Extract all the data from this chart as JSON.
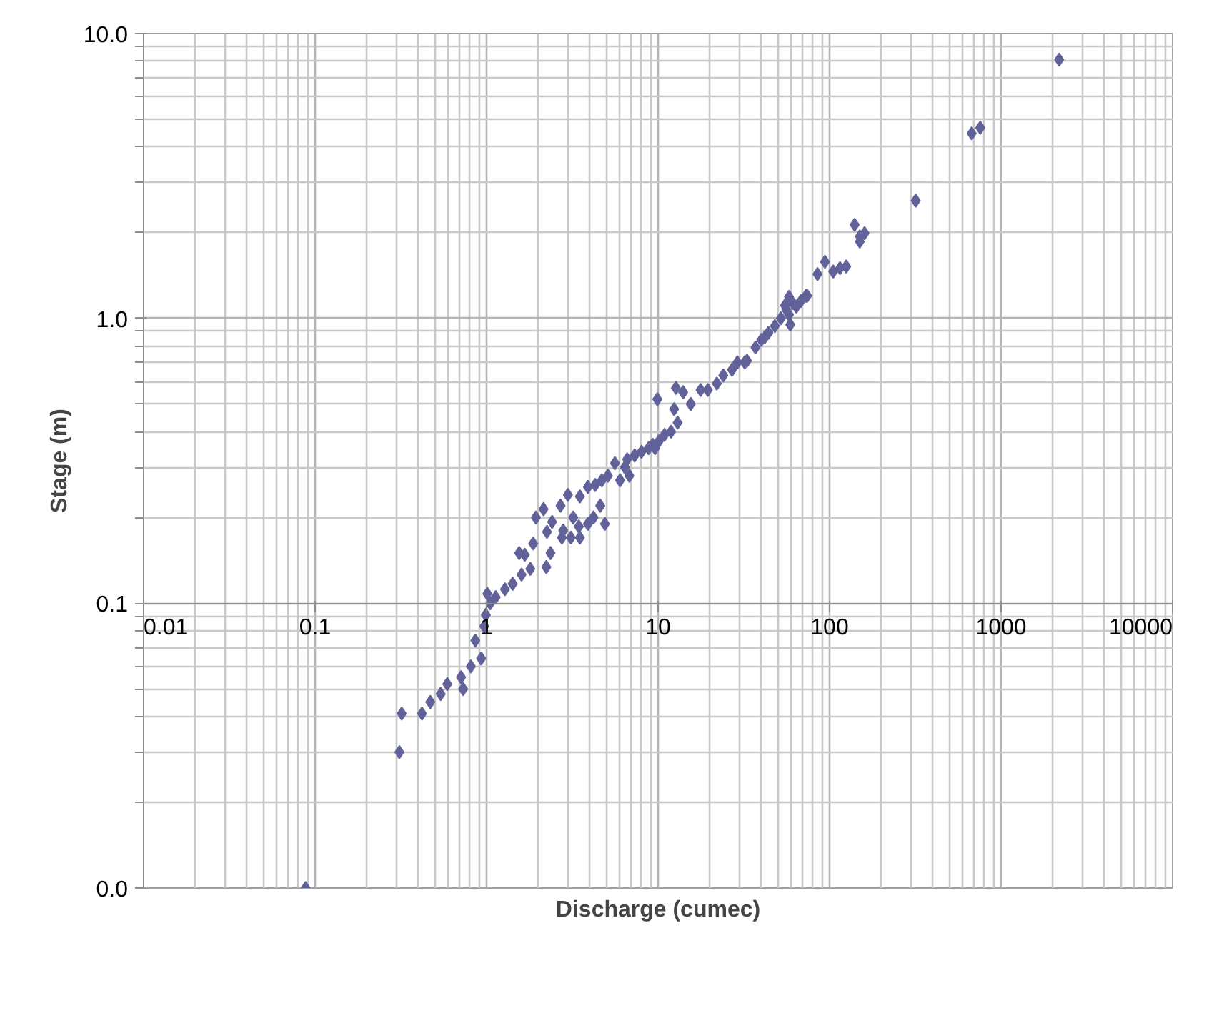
{
  "chart_data": {
    "type": "scatter",
    "xlabel": "Discharge (cumec)",
    "ylabel": "Stage (m)",
    "log": "xy",
    "grid": true,
    "marker": "diamond",
    "xlim": [
      0.01,
      10000
    ],
    "ylim": [
      0.01,
      10
    ],
    "xticks": [
      0.01,
      0.1,
      1,
      10,
      100,
      1000,
      10000
    ],
    "yticks": [
      {
        "value": 0.01,
        "label": "0.0"
      },
      {
        "value": 0.1,
        "label": "0.1"
      },
      {
        "value": 1,
        "label": "1.0"
      },
      {
        "value": 10,
        "label": "10.0"
      }
    ],
    "series": [
      {
        "color": "#62629a",
        "x": [
          0.088,
          0.31,
          0.32,
          0.42,
          0.47,
          0.54,
          0.59,
          0.71,
          0.73,
          0.81,
          0.93,
          0.86,
          0.97,
          0.99,
          1.05,
          1.01,
          1.13,
          1.28,
          1.42,
          1.6,
          1.8,
          1.55,
          1.67,
          1.87,
          2.25,
          2.23,
          2.36,
          1.94,
          2.15,
          2.41,
          2.7,
          2.98,
          2.8,
          3.2,
          3.5,
          3.9,
          2.75,
          3.1,
          3.45,
          3.5,
          3.9,
          4.2,
          4.6,
          4.9,
          4.3,
          4.7,
          5.1,
          5.6,
          6.0,
          6.4,
          6.8,
          6.6,
          7.3,
          8.0,
          8.8,
          9.3,
          10.1,
          9.6,
          10.9,
          11.9,
          13.0,
          12.4,
          9.9,
          12.7,
          14,
          15.5,
          17.7,
          19.5,
          22,
          24,
          27,
          29,
          32,
          33,
          37,
          40,
          42,
          44,
          48,
          52,
          56,
          58,
          61,
          64,
          68,
          73,
          58,
          59,
          55,
          74,
          85,
          94,
          105,
          115,
          125,
          140,
          150,
          160,
          150,
          318,
          674,
          756,
          2180
        ],
        "values": [
          0.01,
          0.03,
          0.041,
          0.041,
          0.045,
          0.048,
          0.052,
          0.055,
          0.05,
          0.06,
          0.064,
          0.074,
          0.083,
          0.091,
          0.1,
          0.108,
          0.105,
          0.112,
          0.117,
          0.126,
          0.132,
          0.15,
          0.148,
          0.162,
          0.178,
          0.134,
          0.15,
          0.2,
          0.214,
          0.193,
          0.22,
          0.24,
          0.18,
          0.2,
          0.237,
          0.256,
          0.17,
          0.17,
          0.186,
          0.17,
          0.19,
          0.2,
          0.22,
          0.19,
          0.26,
          0.27,
          0.28,
          0.31,
          0.27,
          0.3,
          0.28,
          0.32,
          0.33,
          0.34,
          0.35,
          0.36,
          0.37,
          0.35,
          0.39,
          0.4,
          0.43,
          0.48,
          0.52,
          0.57,
          0.55,
          0.5,
          0.56,
          0.56,
          0.59,
          0.63,
          0.66,
          0.7,
          0.7,
          0.71,
          0.79,
          0.84,
          0.86,
          0.89,
          0.94,
          1.0,
          1.07,
          1.03,
          1.13,
          1.1,
          1.15,
          1.2,
          1.19,
          0.95,
          1.11,
          1.2,
          1.43,
          1.58,
          1.46,
          1.5,
          1.52,
          2.13,
          1.94,
          1.99,
          1.86,
          2.59,
          4.46,
          4.67,
          8.1
        ]
      }
    ]
  }
}
